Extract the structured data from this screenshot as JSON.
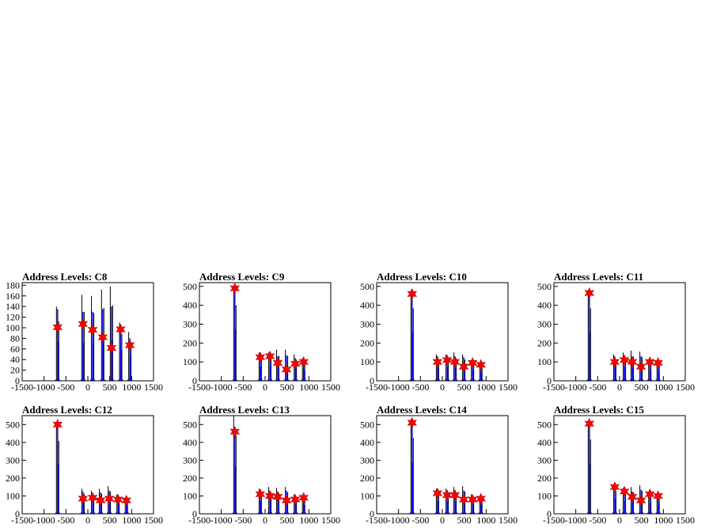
{
  "colors": {
    "frame": "#000000",
    "hist_black": "#000000",
    "hist_blue": "#0000ff",
    "marker": "#ff0000",
    "background": "#ffffff"
  },
  "chart_data": [
    {
      "type": "histogram",
      "title": "Address Levels: C8",
      "xlim": [
        -1500,
        1500
      ],
      "ylim": [
        0,
        185
      ],
      "xticks": [
        "-1500",
        "-1000",
        "-500",
        "0",
        "500",
        "1000",
        "1500"
      ],
      "xticks_values": [
        -1500,
        -1000,
        -500,
        0,
        500,
        1000,
        1500
      ],
      "yticks": [
        0,
        20,
        40,
        60,
        80,
        100,
        120,
        140,
        160,
        180
      ],
      "grid": false,
      "peaks": [
        {
          "x": -690,
          "y": 101,
          "black_height": 140,
          "blue_height": 135
        },
        {
          "x": -110,
          "y": 107,
          "black_height": 162,
          "blue_height": 130
        },
        {
          "x": 110,
          "y": 96,
          "black_height": 160,
          "blue_height": 130
        },
        {
          "x": 340,
          "y": 82,
          "black_height": 172,
          "blue_height": 135
        },
        {
          "x": 540,
          "y": 62,
          "black_height": 178,
          "blue_height": 140
        },
        {
          "x": 750,
          "y": 97,
          "black_height": 110,
          "blue_height": 105
        },
        {
          "x": 960,
          "y": 67,
          "black_height": 92,
          "blue_height": 80
        }
      ]
    },
    {
      "type": "histogram",
      "title": "Address Levels: C9",
      "xlim": [
        -1500,
        1500
      ],
      "ylim": [
        0,
        520
      ],
      "xticks": [
        "-1500",
        "-1000",
        "-500",
        "0",
        "500",
        "1000",
        "1500"
      ],
      "xticks_values": [
        -1500,
        -1000,
        -500,
        0,
        500,
        1000,
        1500
      ],
      "yticks": [
        0,
        100,
        200,
        300,
        400,
        500
      ],
      "grid": false,
      "peaks": [
        {
          "x": -690,
          "y": 490,
          "black_height": 500,
          "blue_height": 495
        },
        {
          "x": -110,
          "y": 125,
          "black_height": 150,
          "blue_height": 140
        },
        {
          "x": 110,
          "y": 130,
          "black_height": 150,
          "blue_height": 140
        },
        {
          "x": 290,
          "y": 95,
          "black_height": 165,
          "blue_height": 130
        },
        {
          "x": 490,
          "y": 60,
          "black_height": 165,
          "blue_height": 135
        },
        {
          "x": 690,
          "y": 90,
          "black_height": 140,
          "blue_height": 120
        },
        {
          "x": 880,
          "y": 100,
          "black_height": 120,
          "blue_height": 110
        }
      ]
    },
    {
      "type": "histogram",
      "title": "Address Levels: C10",
      "xlim": [
        -1500,
        1500
      ],
      "ylim": [
        0,
        520
      ],
      "xticks": [
        "-1500",
        "-1000",
        "-500",
        "0",
        "500",
        "1000",
        "1500"
      ],
      "xticks_values": [
        -1500,
        -1000,
        -500,
        0,
        500,
        1000,
        1500
      ],
      "yticks": [
        0,
        100,
        200,
        300,
        400,
        500
      ],
      "grid": false,
      "peaks": [
        {
          "x": -690,
          "y": 460,
          "black_height": 480,
          "blue_height": 470
        },
        {
          "x": -110,
          "y": 100,
          "black_height": 140,
          "blue_height": 130
        },
        {
          "x": 110,
          "y": 110,
          "black_height": 140,
          "blue_height": 130
        },
        {
          "x": 290,
          "y": 100,
          "black_height": 150,
          "blue_height": 130
        },
        {
          "x": 490,
          "y": 75,
          "black_height": 140,
          "blue_height": 125
        },
        {
          "x": 690,
          "y": 95,
          "black_height": 110,
          "blue_height": 100
        },
        {
          "x": 880,
          "y": 85,
          "black_height": 95,
          "blue_height": 85
        }
      ]
    },
    {
      "type": "histogram",
      "title": "Address Levels: C11",
      "xlim": [
        -1500,
        1500
      ],
      "ylim": [
        0,
        520
      ],
      "xticks": [
        "-1500",
        "-1000",
        "-500",
        "0",
        "500",
        "1000",
        "1500"
      ],
      "xticks_values": [
        -1500,
        -1000,
        -500,
        0,
        500,
        1000,
        1500
      ],
      "yticks": [
        0,
        100,
        200,
        300,
        400,
        500
      ],
      "grid": false,
      "peaks": [
        {
          "x": -690,
          "y": 465,
          "black_height": 480,
          "blue_height": 470
        },
        {
          "x": -110,
          "y": 100,
          "black_height": 140,
          "blue_height": 130
        },
        {
          "x": 110,
          "y": 110,
          "black_height": 150,
          "blue_height": 130
        },
        {
          "x": 290,
          "y": 100,
          "black_height": 160,
          "blue_height": 130
        },
        {
          "x": 490,
          "y": 75,
          "black_height": 155,
          "blue_height": 130
        },
        {
          "x": 690,
          "y": 100,
          "black_height": 110,
          "blue_height": 100
        },
        {
          "x": 880,
          "y": 95,
          "black_height": 100,
          "blue_height": 90
        }
      ]
    },
    {
      "type": "histogram",
      "title": "Address Levels: C12",
      "xlim": [
        -1500,
        1500
      ],
      "ylim": [
        0,
        550
      ],
      "xticks": [
        "-1500",
        "-1000",
        "-500",
        "0",
        "500",
        "1000",
        "1500"
      ],
      "xticks_values": [
        -1500,
        -1000,
        -500,
        0,
        500,
        1000,
        1500
      ],
      "yticks": [
        0,
        100,
        200,
        300,
        400,
        500
      ],
      "grid": false,
      "peaks": [
        {
          "x": -690,
          "y": 500,
          "black_height": 510,
          "blue_height": 505
        },
        {
          "x": -110,
          "y": 85,
          "black_height": 140,
          "blue_height": 125
        },
        {
          "x": 110,
          "y": 90,
          "black_height": 130,
          "blue_height": 115
        },
        {
          "x": 290,
          "y": 75,
          "black_height": 140,
          "blue_height": 120
        },
        {
          "x": 490,
          "y": 85,
          "black_height": 155,
          "blue_height": 130
        },
        {
          "x": 690,
          "y": 80,
          "black_height": 110,
          "blue_height": 95
        },
        {
          "x": 880,
          "y": 75,
          "black_height": 90,
          "blue_height": 80
        }
      ]
    },
    {
      "type": "histogram",
      "title": "Address Levels: C13",
      "xlim": [
        -1500,
        1500
      ],
      "ylim": [
        0,
        550
      ],
      "xticks": [
        "-1500",
        "-1000",
        "-500",
        "0",
        "500",
        "1000",
        "1500"
      ],
      "xticks_values": [
        -1500,
        -1000,
        -500,
        0,
        500,
        1000,
        1500
      ],
      "yticks": [
        0,
        100,
        200,
        300,
        400,
        500
      ],
      "grid": false,
      "peaks": [
        {
          "x": -690,
          "y": 460,
          "black_height": 550,
          "blue_height": 480
        },
        {
          "x": -110,
          "y": 110,
          "black_height": 140,
          "blue_height": 130
        },
        {
          "x": 110,
          "y": 100,
          "black_height": 150,
          "blue_height": 130
        },
        {
          "x": 290,
          "y": 95,
          "black_height": 145,
          "blue_height": 125
        },
        {
          "x": 490,
          "y": 75,
          "black_height": 150,
          "blue_height": 130
        },
        {
          "x": 690,
          "y": 80,
          "black_height": 110,
          "blue_height": 95
        },
        {
          "x": 880,
          "y": 90,
          "black_height": 100,
          "blue_height": 90
        }
      ]
    },
    {
      "type": "histogram",
      "title": "Address Levels: C14",
      "xlim": [
        -1500,
        1500
      ],
      "ylim": [
        0,
        550
      ],
      "xticks": [
        "-1500",
        "-1000",
        "-500",
        "0",
        "500",
        "1000",
        "1500"
      ],
      "xticks_values": [
        -1500,
        -1000,
        -500,
        0,
        500,
        1000,
        1500
      ],
      "yticks": [
        0,
        100,
        200,
        300,
        400,
        500
      ],
      "grid": false,
      "peaks": [
        {
          "x": -690,
          "y": 510,
          "black_height": 530,
          "blue_height": 520
        },
        {
          "x": -110,
          "y": 115,
          "black_height": 140,
          "blue_height": 130
        },
        {
          "x": 110,
          "y": 105,
          "black_height": 140,
          "blue_height": 125
        },
        {
          "x": 290,
          "y": 105,
          "black_height": 150,
          "blue_height": 125
        },
        {
          "x": 490,
          "y": 80,
          "black_height": 155,
          "blue_height": 130
        },
        {
          "x": 690,
          "y": 80,
          "black_height": 110,
          "blue_height": 95
        },
        {
          "x": 880,
          "y": 85,
          "black_height": 100,
          "blue_height": 90
        }
      ]
    },
    {
      "type": "histogram",
      "title": "Address Levels: C15",
      "xlim": [
        -1500,
        1500
      ],
      "ylim": [
        0,
        550
      ],
      "xticks": [
        "-1500",
        "-1000",
        "-500",
        "0",
        "500",
        "1000",
        "1500"
      ],
      "xticks_values": [
        -1500,
        -1000,
        -500,
        0,
        500,
        1000,
        1500
      ],
      "yticks": [
        0,
        100,
        200,
        300,
        400,
        500
      ],
      "grid": false,
      "peaks": [
        {
          "x": -690,
          "y": 505,
          "black_height": 520,
          "blue_height": 510
        },
        {
          "x": -110,
          "y": 150,
          "black_height": 160,
          "blue_height": 150
        },
        {
          "x": 110,
          "y": 125,
          "black_height": 145,
          "blue_height": 130
        },
        {
          "x": 290,
          "y": 95,
          "black_height": 150,
          "blue_height": 125
        },
        {
          "x": 490,
          "y": 75,
          "black_height": 160,
          "blue_height": 135
        },
        {
          "x": 690,
          "y": 110,
          "black_height": 115,
          "blue_height": 105
        },
        {
          "x": 880,
          "y": 100,
          "black_height": 105,
          "blue_height": 95
        }
      ]
    }
  ]
}
